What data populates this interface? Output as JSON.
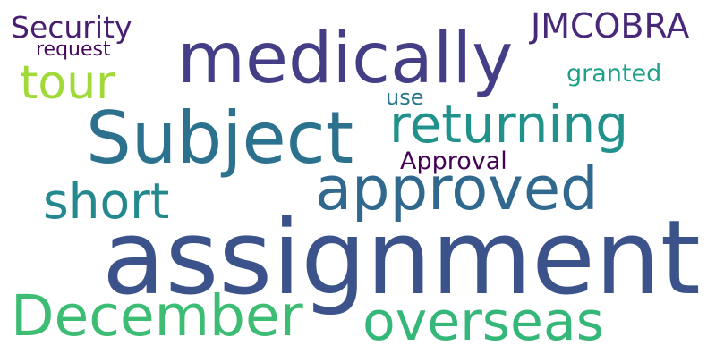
{
  "words": [
    {
      "id": "assignment",
      "text": "assignment",
      "color": "#3b528b"
    },
    {
      "id": "medically",
      "text": "medically",
      "color": "#433e85"
    },
    {
      "id": "subject",
      "text": "Subject",
      "color": "#2c728e"
    },
    {
      "id": "approved",
      "text": "approved",
      "color": "#31688e"
    },
    {
      "id": "returning",
      "text": "returning",
      "color": "#21918c"
    },
    {
      "id": "december",
      "text": "December",
      "color": "#3dbc74"
    },
    {
      "id": "overseas",
      "text": "overseas",
      "color": "#35b779"
    },
    {
      "id": "short",
      "text": "short",
      "color": "#23898e"
    },
    {
      "id": "tour",
      "text": "tour",
      "color": "#a0da39"
    },
    {
      "id": "jmcobra",
      "text": "JMCOBRA",
      "color": "#482878"
    },
    {
      "id": "security",
      "text": "Security",
      "color": "#481f70"
    },
    {
      "id": "request",
      "text": "request",
      "color": "#46085c"
    },
    {
      "id": "granted",
      "text": "granted",
      "color": "#1fa088"
    },
    {
      "id": "use",
      "text": "use",
      "color": "#2a788e"
    },
    {
      "id": "approval",
      "text": "Approval",
      "color": "#440154"
    }
  ]
}
